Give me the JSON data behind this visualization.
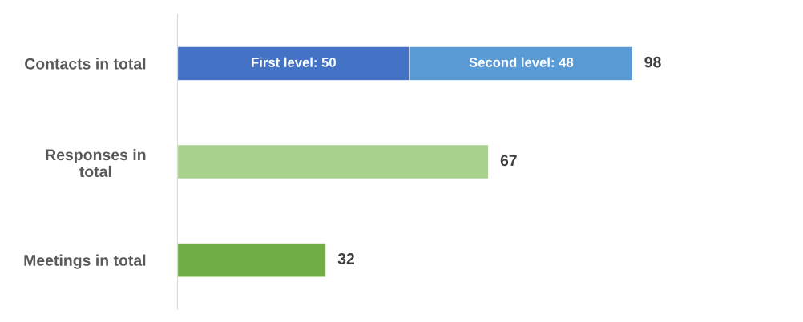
{
  "chart_data": {
    "type": "bar",
    "orientation": "horizontal",
    "stacked": true,
    "categories": [
      "Contacts in total",
      "Responses in\ntotal",
      "Meetings in total"
    ],
    "series": [
      {
        "color": "#4472c4",
        "values": [
          50,
          null,
          null
        ],
        "value_labels": [
          "First level: 50",
          null,
          null
        ]
      },
      {
        "color": "#5b9bd5",
        "values": [
          48,
          null,
          null
        ],
        "value_labels": [
          "Second level: 48",
          null,
          null
        ]
      },
      {
        "color": "#a9d18e",
        "values": [
          null,
          67,
          null
        ]
      },
      {
        "color": "#70ad47",
        "values": [
          null,
          null,
          32
        ]
      }
    ],
    "totals": [
      "98",
      "67",
      "32"
    ],
    "grid": false,
    "legend": false
  }
}
